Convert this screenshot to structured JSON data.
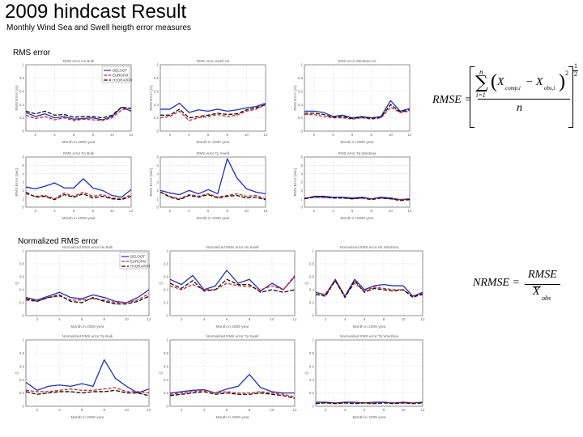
{
  "page": {
    "title": "2009 hindcast Result",
    "subtitle": "Monthly Wind Sea and Swell heigth error measures",
    "section_rms": "RMS error",
    "section_nrms": "Normalized RMS error"
  },
  "legend": [
    "DELOOT",
    "EUROFM",
    "HYDRAPFH"
  ],
  "colors": {
    "series": [
      "#1f2fbf",
      "#d8242a",
      "#111111"
    ]
  },
  "equations": {
    "rmse": {
      "lhs": "RMSE =",
      "sum": "∑",
      "upper": "n",
      "lower": "i=1",
      "x_comp": "X",
      "comp_sub": "comp,i",
      "minus": "−",
      "x_obs": "X",
      "obs_sub": "obs,i",
      "sq": "2",
      "denom": "n",
      "exp_num": "1",
      "exp_den": "2"
    },
    "nrmse": {
      "lhs": "NRMSE =",
      "num": "RMSE",
      "den": "X",
      "den_sub": "obs"
    }
  },
  "chart_data": [
    {
      "type": "line",
      "title": "RMS error Hs Bulk",
      "xlabel": "Month in 2009 year",
      "ylabel": "RMS Error (m)",
      "xlim": [
        1,
        12
      ],
      "ylim": [
        0,
        1
      ],
      "xticks": [
        2,
        4,
        6,
        8,
        10,
        12
      ],
      "yticks": [
        0,
        0.2,
        0.4,
        0.6,
        0.8,
        1
      ],
      "legend": true,
      "x": [
        1,
        2,
        3,
        4,
        5,
        6,
        7,
        8,
        9,
        10,
        11,
        12
      ],
      "series": [
        {
          "name": "DELOOT",
          "values": [
            0.28,
            0.22,
            0.26,
            0.2,
            0.22,
            0.18,
            0.19,
            0.2,
            0.17,
            0.22,
            0.36,
            0.3
          ]
        },
        {
          "name": "EUROFM",
          "values": [
            0.24,
            0.19,
            0.22,
            0.17,
            0.2,
            0.16,
            0.18,
            0.17,
            0.16,
            0.2,
            0.32,
            0.35
          ]
        },
        {
          "name": "HYDRAPFH",
          "values": [
            0.3,
            0.26,
            0.3,
            0.24,
            0.25,
            0.21,
            0.22,
            0.22,
            0.2,
            0.24,
            0.36,
            0.34
          ]
        }
      ]
    },
    {
      "type": "line",
      "title": "RMS error Swell Hs",
      "xlabel": "Month in 2009 year",
      "ylabel": "RMS Error (m)",
      "xlim": [
        1,
        12
      ],
      "ylim": [
        0,
        1
      ],
      "xticks": [
        2,
        4,
        6,
        8,
        10,
        12
      ],
      "yticks": [
        0,
        0.2,
        0.4,
        0.6,
        0.8,
        1
      ],
      "legend": false,
      "x": [
        1,
        2,
        3,
        4,
        5,
        6,
        7,
        8,
        9,
        10,
        11,
        12
      ],
      "series": [
        {
          "name": "DELOOT",
          "values": [
            0.33,
            0.33,
            0.42,
            0.28,
            0.32,
            0.3,
            0.33,
            0.3,
            0.32,
            0.35,
            0.37,
            0.42
          ]
        },
        {
          "name": "EUROFM",
          "values": [
            0.2,
            0.22,
            0.3,
            0.16,
            0.2,
            0.22,
            0.25,
            0.22,
            0.24,
            0.3,
            0.33,
            0.4
          ]
        },
        {
          "name": "HYDRAPFH",
          "values": [
            0.24,
            0.24,
            0.33,
            0.2,
            0.22,
            0.24,
            0.27,
            0.25,
            0.26,
            0.32,
            0.35,
            0.4
          ]
        }
      ]
    },
    {
      "type": "line",
      "title": "RMS error Windsea Hs",
      "xlabel": "Month in 2009 year",
      "ylabel": "RMS Error (m)",
      "xlim": [
        1,
        12
      ],
      "ylim": [
        0,
        1
      ],
      "xticks": [
        2,
        4,
        6,
        8,
        10,
        12
      ],
      "yticks": [
        0,
        0.2,
        0.4,
        0.6,
        0.8,
        1
      ],
      "legend": false,
      "x": [
        1,
        2,
        3,
        4,
        5,
        6,
        7,
        8,
        9,
        10,
        11,
        12
      ],
      "series": [
        {
          "name": "DELOOT",
          "values": [
            0.3,
            0.3,
            0.28,
            0.22,
            0.24,
            0.2,
            0.22,
            0.2,
            0.22,
            0.46,
            0.3,
            0.34
          ]
        },
        {
          "name": "EUROFM",
          "values": [
            0.25,
            0.25,
            0.22,
            0.2,
            0.2,
            0.18,
            0.2,
            0.18,
            0.2,
            0.36,
            0.28,
            0.3
          ]
        },
        {
          "name": "HYDRAPFH",
          "values": [
            0.27,
            0.27,
            0.25,
            0.21,
            0.22,
            0.19,
            0.21,
            0.19,
            0.21,
            0.4,
            0.29,
            0.32
          ]
        }
      ]
    },
    {
      "type": "line",
      "title": "RMS error Tp Bulk",
      "xlabel": "Month in 2009 year",
      "ylabel": "RMS Error (sec)",
      "xlim": [
        1,
        12
      ],
      "ylim": [
        0,
        6
      ],
      "xticks": [
        2,
        4,
        6,
        8,
        10,
        12
      ],
      "yticks": [
        0,
        1,
        2,
        3,
        4,
        5,
        6
      ],
      "legend": false,
      "x": [
        1,
        2,
        3,
        4,
        5,
        6,
        7,
        8,
        9,
        10,
        11,
        12
      ],
      "series": [
        {
          "name": "DELOOT",
          "values": [
            2.4,
            2.2,
            2.5,
            2.9,
            2.3,
            2.3,
            3.4,
            2.3,
            2.0,
            1.4,
            1.2,
            2.1
          ]
        },
        {
          "name": "EUROFM",
          "values": [
            1.6,
            1.3,
            1.4,
            1.0,
            1.7,
            1.3,
            1.8,
            1.3,
            1.5,
            1.1,
            1.0,
            1.5
          ]
        },
        {
          "name": "HYDRAPFH",
          "values": [
            1.8,
            1.2,
            1.3,
            0.9,
            1.5,
            1.2,
            1.6,
            1.1,
            1.3,
            1.0,
            0.9,
            1.3
          ]
        }
      ]
    },
    {
      "type": "line",
      "title": "RMS error Tp Swell",
      "xlabel": "Month in 2009 year",
      "ylabel": "RMS Error (sec)",
      "xlim": [
        1,
        12
      ],
      "ylim": [
        0,
        6
      ],
      "xticks": [
        2,
        4,
        6,
        8,
        10,
        12
      ],
      "yticks": [
        0,
        1,
        2,
        3,
        4,
        5,
        6
      ],
      "legend": false,
      "x": [
        1,
        2,
        3,
        4,
        5,
        6,
        7,
        8,
        9,
        10,
        11,
        12
      ],
      "series": [
        {
          "name": "DELOOT",
          "values": [
            2.0,
            1.7,
            1.5,
            2.0,
            1.6,
            2.1,
            1.6,
            5.8,
            3.5,
            2.2,
            1.8,
            1.6
          ]
        },
        {
          "name": "EUROFM",
          "values": [
            1.8,
            1.3,
            1.0,
            1.5,
            1.3,
            1.6,
            1.2,
            1.4,
            1.6,
            1.3,
            1.4,
            1.0
          ]
        },
        {
          "name": "HYDRAPFH",
          "values": [
            1.8,
            1.2,
            0.9,
            1.4,
            1.2,
            1.5,
            1.1,
            1.3,
            1.4,
            1.1,
            1.2,
            0.9
          ]
        }
      ]
    },
    {
      "type": "line",
      "title": "RMS error Tp Windsea",
      "xlabel": "Month in 2009 year",
      "ylabel": "RMS Error (sec)",
      "xlim": [
        1,
        12
      ],
      "ylim": [
        0,
        6
      ],
      "xticks": [
        2,
        4,
        6,
        8,
        10,
        12
      ],
      "yticks": [
        0,
        1,
        2,
        3,
        4,
        5,
        6
      ],
      "legend": false,
      "x": [
        1,
        2,
        3,
        4,
        5,
        6,
        7,
        8,
        9,
        10,
        11,
        12
      ],
      "series": [
        {
          "name": "DELOOT",
          "values": [
            1.0,
            1.3,
            1.3,
            1.2,
            1.2,
            1.1,
            1.2,
            1.0,
            1.2,
            1.1,
            0.9,
            1.0
          ]
        },
        {
          "name": "EUROFM",
          "values": [
            1.1,
            1.2,
            1.2,
            1.1,
            1.1,
            1.0,
            1.1,
            1.0,
            1.1,
            1.0,
            0.9,
            1.0
          ]
        },
        {
          "name": "HYDRAPFH",
          "values": [
            1.0,
            1.2,
            1.2,
            1.1,
            1.1,
            1.0,
            1.1,
            0.9,
            1.1,
            1.0,
            0.8,
            0.9
          ]
        }
      ]
    },
    {
      "type": "line",
      "title": "Normalized RMS error Hs Bulk",
      "xlabel": "Month in 2009 year",
      "ylabel": "()",
      "xlim": [
        1,
        12
      ],
      "ylim": [
        0,
        1
      ],
      "xticks": [
        2,
        4,
        6,
        8,
        10,
        12
      ],
      "yticks": [
        0,
        0.2,
        0.4,
        0.6,
        0.8,
        1
      ],
      "legend": true,
      "x": [
        1,
        2,
        3,
        4,
        5,
        6,
        7,
        8,
        9,
        10,
        11,
        12
      ],
      "series": [
        {
          "name": "DELOOT",
          "values": [
            0.28,
            0.24,
            0.3,
            0.36,
            0.28,
            0.26,
            0.32,
            0.28,
            0.22,
            0.2,
            0.28,
            0.4
          ]
        },
        {
          "name": "EUROFM",
          "values": [
            0.24,
            0.22,
            0.28,
            0.3,
            0.24,
            0.24,
            0.26,
            0.24,
            0.2,
            0.2,
            0.24,
            0.34
          ]
        },
        {
          "name": "HYDRAPFH",
          "values": [
            0.26,
            0.22,
            0.28,
            0.32,
            0.22,
            0.2,
            0.28,
            0.22,
            0.18,
            0.18,
            0.22,
            0.3
          ]
        }
      ]
    },
    {
      "type": "line",
      "title": "Normalized RMS error Hs Swell",
      "xlabel": "Month in 2009 year",
      "ylabel": "()",
      "xlim": [
        1,
        12
      ],
      "ylim": [
        0,
        1
      ],
      "xticks": [
        2,
        4,
        6,
        8,
        10,
        12
      ],
      "yticks": [
        0,
        0.2,
        0.4,
        0.6,
        0.8,
        1
      ],
      "legend": false,
      "x": [
        1,
        2,
        3,
        4,
        5,
        6,
        7,
        8,
        9,
        10,
        11,
        12
      ],
      "series": [
        {
          "name": "DELOOT",
          "values": [
            0.56,
            0.48,
            0.62,
            0.4,
            0.46,
            0.7,
            0.5,
            0.56,
            0.38,
            0.5,
            0.4,
            0.6
          ]
        },
        {
          "name": "EUROFM",
          "values": [
            0.46,
            0.4,
            0.48,
            0.4,
            0.4,
            0.5,
            0.46,
            0.45,
            0.4,
            0.46,
            0.4,
            0.62
          ]
        },
        {
          "name": "HYDRAPFH",
          "values": [
            0.5,
            0.42,
            0.54,
            0.38,
            0.4,
            0.56,
            0.48,
            0.48,
            0.36,
            0.4,
            0.36,
            0.4
          ]
        }
      ]
    },
    {
      "type": "line",
      "title": "Normalized RMS error Hs WindSea",
      "xlabel": "Month in 2009 year",
      "ylabel": "()",
      "xlim": [
        1,
        12
      ],
      "ylim": [
        0,
        1
      ],
      "xticks": [
        2,
        4,
        6,
        8,
        10,
        12
      ],
      "yticks": [
        0,
        0.2,
        0.4,
        0.6,
        0.8,
        1
      ],
      "legend": false,
      "x": [
        1,
        2,
        3,
        4,
        5,
        6,
        7,
        8,
        9,
        10,
        11,
        12
      ],
      "series": [
        {
          "name": "DELOOT",
          "values": [
            0.36,
            0.32,
            0.56,
            0.3,
            0.56,
            0.4,
            0.46,
            0.48,
            0.46,
            0.46,
            0.3,
            0.36
          ]
        },
        {
          "name": "EUROFM",
          "values": [
            0.32,
            0.34,
            0.54,
            0.3,
            0.5,
            0.38,
            0.44,
            0.42,
            0.4,
            0.4,
            0.3,
            0.32
          ]
        },
        {
          "name": "HYDRAPFH",
          "values": [
            0.33,
            0.3,
            0.54,
            0.28,
            0.54,
            0.36,
            0.42,
            0.4,
            0.38,
            0.4,
            0.28,
            0.34
          ]
        }
      ]
    },
    {
      "type": "line",
      "title": "Normalized RMS error Tp Bulk",
      "xlabel": "Month in 2009 year",
      "ylabel": "()",
      "xlim": [
        1,
        12
      ],
      "ylim": [
        0,
        1
      ],
      "xticks": [
        2,
        4,
        6,
        8,
        10,
        12
      ],
      "yticks": [
        0,
        0.2,
        0.4,
        0.6,
        0.8,
        1
      ],
      "legend": false,
      "x": [
        1,
        2,
        3,
        4,
        5,
        6,
        7,
        8,
        9,
        10,
        11,
        12
      ],
      "series": [
        {
          "name": "DELOOT",
          "values": [
            0.36,
            0.24,
            0.3,
            0.32,
            0.3,
            0.34,
            0.3,
            0.7,
            0.42,
            0.3,
            0.2,
            0.26
          ]
        },
        {
          "name": "EUROFM",
          "values": [
            0.24,
            0.22,
            0.22,
            0.24,
            0.26,
            0.24,
            0.24,
            0.26,
            0.28,
            0.22,
            0.22,
            0.2
          ]
        },
        {
          "name": "HYDRAPFH",
          "values": [
            0.22,
            0.18,
            0.2,
            0.22,
            0.22,
            0.2,
            0.22,
            0.22,
            0.24,
            0.2,
            0.2,
            0.16
          ]
        }
      ]
    },
    {
      "type": "line",
      "title": "Normalized RMS error Tp Swell",
      "xlabel": "Month in 2009 year",
      "ylabel": "()",
      "xlim": [
        1,
        12
      ],
      "ylim": [
        0,
        1
      ],
      "xticks": [
        2,
        4,
        6,
        8,
        10,
        12
      ],
      "yticks": [
        0,
        0.2,
        0.4,
        0.6,
        0.8,
        1
      ],
      "legend": false,
      "x": [
        1,
        2,
        3,
        4,
        5,
        6,
        7,
        8,
        9,
        10,
        11,
        12
      ],
      "series": [
        {
          "name": "DELOOT",
          "values": [
            0.2,
            0.22,
            0.24,
            0.25,
            0.2,
            0.26,
            0.3,
            0.48,
            0.28,
            0.22,
            0.2,
            0.2
          ]
        },
        {
          "name": "EUROFM",
          "values": [
            0.18,
            0.2,
            0.22,
            0.24,
            0.2,
            0.22,
            0.2,
            0.2,
            0.22,
            0.2,
            0.18,
            0.14
          ]
        },
        {
          "name": "HYDRAPFH",
          "values": [
            0.16,
            0.18,
            0.2,
            0.22,
            0.18,
            0.2,
            0.18,
            0.18,
            0.2,
            0.18,
            0.16,
            0.12
          ]
        }
      ]
    },
    {
      "type": "line",
      "title": "Normalized RMS error Tp WindSea",
      "xlabel": "Month in 2009 year",
      "ylabel": "()",
      "xlim": [
        1,
        12
      ],
      "ylim": [
        0,
        1
      ],
      "xticks": [
        2,
        4,
        6,
        8,
        10,
        12
      ],
      "yticks": [
        0,
        0.2,
        0.4,
        0.6,
        0.8,
        1
      ],
      "legend": false,
      "x": [
        1,
        2,
        3,
        4,
        5,
        6,
        7,
        8,
        9,
        10,
        11,
        12
      ],
      "series": [
        {
          "name": "DELOOT",
          "values": [
            0.06,
            0.06,
            0.05,
            0.06,
            0.06,
            0.05,
            0.06,
            0.06,
            0.05,
            0.06,
            0.05,
            0.06
          ]
        },
        {
          "name": "EUROFM",
          "values": [
            0.05,
            0.05,
            0.05,
            0.05,
            0.05,
            0.05,
            0.05,
            0.05,
            0.05,
            0.05,
            0.05,
            0.05
          ]
        },
        {
          "name": "HYDRAPFH",
          "values": [
            0.04,
            0.05,
            0.04,
            0.05,
            0.04,
            0.05,
            0.04,
            0.05,
            0.04,
            0.05,
            0.04,
            0.05
          ]
        }
      ]
    }
  ]
}
